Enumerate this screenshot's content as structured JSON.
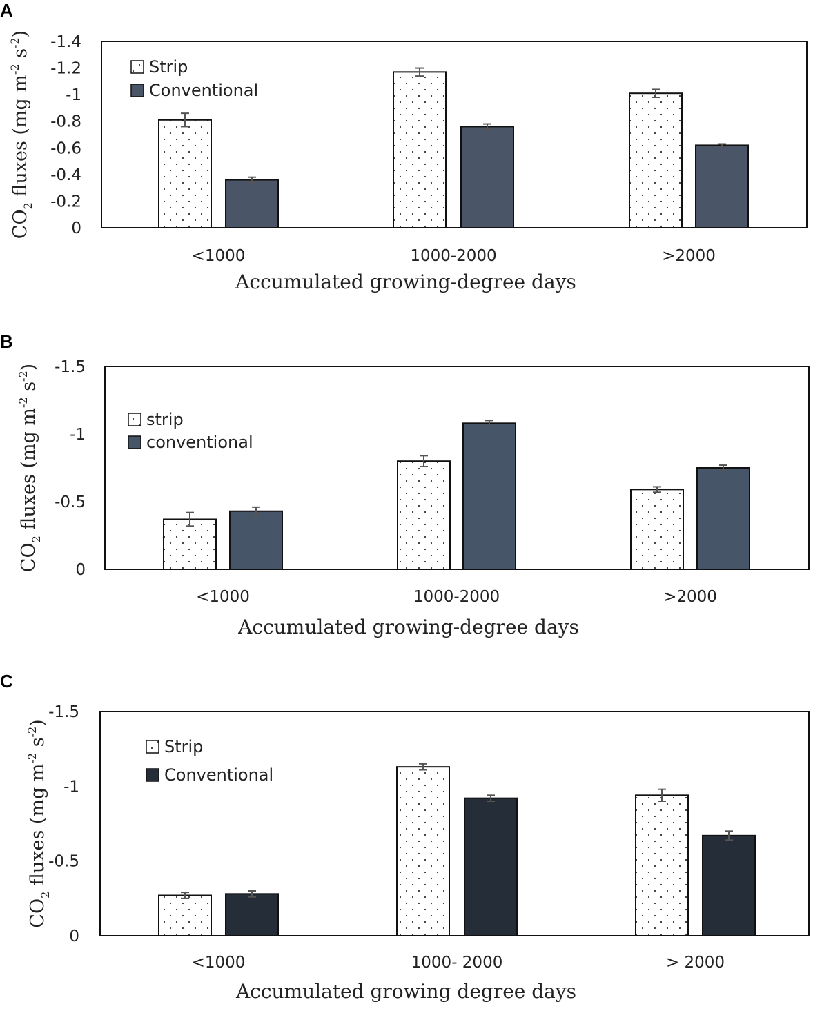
{
  "chart_data": [
    {
      "panel": "A",
      "type": "bar",
      "categories": [
        "<1000",
        "1000-2000",
        ">2000"
      ],
      "series": [
        {
          "name": "Strip",
          "values": [
            -0.81,
            -1.17,
            -1.01
          ],
          "errors": [
            0.05,
            0.03,
            0.03
          ],
          "fill": "dotted",
          "color": "#ffffff"
        },
        {
          "name": "Conventional",
          "values": [
            -0.36,
            -0.76,
            -0.62
          ],
          "errors": [
            0.02,
            0.02,
            0.01
          ],
          "fill": "solid",
          "color": "#4a5568"
        }
      ],
      "yticks": [
        "-1.4",
        "-1.2",
        "-1",
        "-0.8",
        "-0.6",
        "-0.4",
        "-0.2",
        "0"
      ],
      "ylim": [
        0,
        -1.4
      ],
      "xlabel": "Accumulated growing-degree days",
      "ylabel": "CO2 fluxes (mg m-2 s-2)"
    },
    {
      "panel": "B",
      "type": "bar",
      "categories": [
        "<1000",
        "1000-2000",
        ">2000"
      ],
      "series": [
        {
          "name": "strip",
          "values": [
            -0.37,
            -0.8,
            -0.59
          ],
          "errors": [
            0.05,
            0.04,
            0.02
          ],
          "fill": "dotted",
          "color": "#ffffff"
        },
        {
          "name": "conventional",
          "values": [
            -0.43,
            -1.08,
            -0.75
          ],
          "errors": [
            0.03,
            0.02,
            0.02
          ],
          "fill": "solid",
          "color": "#475569"
        }
      ],
      "yticks": [
        "-1.5",
        "-1",
        "-0.5",
        "0"
      ],
      "ylim": [
        0,
        -1.5
      ],
      "xlabel": "Accumulated growing-degree days",
      "ylabel": "CO2 fluxes (mg m-2 s-2)"
    },
    {
      "panel": "C",
      "type": "bar",
      "categories": [
        "<1000",
        "1000- 2000",
        "> 2000"
      ],
      "series": [
        {
          "name": "Strip",
          "values": [
            -0.27,
            -1.13,
            -0.94
          ],
          "errors": [
            0.02,
            0.02,
            0.04
          ],
          "fill": "dotted",
          "color": "#ffffff"
        },
        {
          "name": "Conventional",
          "values": [
            -0.28,
            -0.92,
            -0.67
          ],
          "errors": [
            0.02,
            0.02,
            0.03
          ],
          "fill": "solid",
          "color": "#252d38"
        }
      ],
      "yticks": [
        "-1.5",
        "-1",
        "-0.5",
        "0"
      ],
      "ylim": [
        0,
        -1.5
      ],
      "xlabel": "Accumulated growing degree days",
      "ylabel": "CO2 fluxes (mg m-2 s-2)"
    }
  ],
  "ylabel_parts": {
    "main": "CO",
    "sub2": "2",
    "rest": " fluxes (mg m",
    "exp1": "-2",
    "mid": " s",
    "exp2": "-2",
    "close": ")"
  }
}
